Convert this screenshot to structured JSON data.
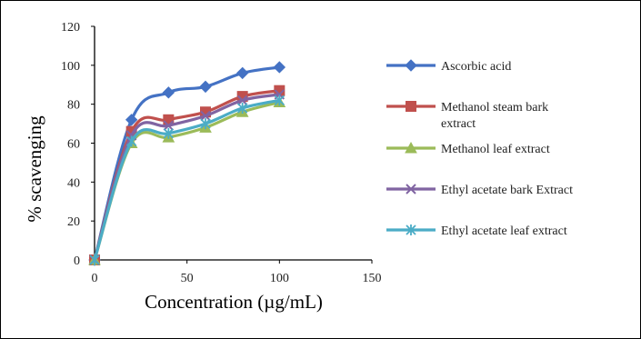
{
  "chart_data": {
    "type": "line",
    "title": "",
    "xlabel": "Concentration (µg/mL)",
    "ylabel": "% scavenging",
    "xlim": [
      0,
      150
    ],
    "ylim": [
      0,
      120
    ],
    "x_ticks": [
      "0",
      "50",
      "100",
      "150"
    ],
    "y_ticks": [
      "0",
      "20",
      "40",
      "60",
      "80",
      "100",
      "120"
    ],
    "grid": false,
    "legend_position": "right",
    "smooth": true,
    "x": [
      0,
      20,
      40,
      60,
      80,
      100
    ],
    "series": [
      {
        "name": "Ascorbic acid",
        "legend_lines": [
          "Ascorbic acid"
        ],
        "values": [
          0,
          72,
          86,
          89,
          96,
          99
        ],
        "color": "#4472c4",
        "marker": "diamond"
      },
      {
        "name": "Methanol steam bark extract",
        "legend_lines": [
          "Methanol steam bark",
          "extract"
        ],
        "values": [
          0,
          66,
          72,
          76,
          84,
          87
        ],
        "color": "#c0504d",
        "marker": "square"
      },
      {
        "name": "Methanol leaf extract",
        "legend_lines": [
          "Methanol leaf extract"
        ],
        "values": [
          0,
          60,
          63,
          68,
          76,
          81
        ],
        "color": "#9bbb59",
        "marker": "triangle"
      },
      {
        "name": "Ethyl acetate bark Extract",
        "legend_lines": [
          "Ethyl acetate bark Extract"
        ],
        "values": [
          0,
          64,
          69,
          74,
          82,
          85
        ],
        "color": "#8064a2",
        "marker": "x"
      },
      {
        "name": "Ethyl acetate leaf extract",
        "legend_lines": [
          "Ethyl acetate leaf extract"
        ],
        "values": [
          0,
          61,
          65,
          70,
          78,
          82
        ],
        "color": "#4bacc6",
        "marker": "asterisk"
      }
    ]
  }
}
